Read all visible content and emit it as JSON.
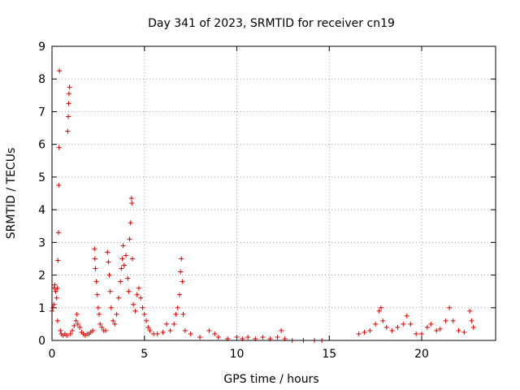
{
  "chart_data": {
    "type": "scatter",
    "title": "Day 341 of 2023, SRMTID for receiver cn19",
    "xlabel": "GPS time / hours",
    "ylabel": "SRMTID / TECUs",
    "xlim": [
      0,
      24
    ],
    "ylim": [
      0,
      9
    ],
    "xticks": [
      "0",
      "5",
      "10",
      "15",
      "20"
    ],
    "yticks": [
      "0",
      "1",
      "2",
      "3",
      "4",
      "5",
      "6",
      "7",
      "8",
      "9"
    ],
    "grid": true,
    "marker": "plus",
    "color": "#e00000",
    "series": [
      {
        "name": "SRMTID",
        "points": [
          [
            0.0,
            0.9
          ],
          [
            0.05,
            1.0
          ],
          [
            0.1,
            1.1
          ],
          [
            0.12,
            1.6
          ],
          [
            0.15,
            1.7
          ],
          [
            0.2,
            1.5
          ],
          [
            0.25,
            1.3
          ],
          [
            0.28,
            1.6
          ],
          [
            0.3,
            0.6
          ],
          [
            0.32,
            2.45
          ],
          [
            0.35,
            3.3
          ],
          [
            0.36,
            4.75
          ],
          [
            0.38,
            5.9
          ],
          [
            0.4,
            8.25
          ],
          [
            0.45,
            0.3
          ],
          [
            0.5,
            0.2
          ],
          [
            0.6,
            0.15
          ],
          [
            0.7,
            0.2
          ],
          [
            0.8,
            0.15
          ],
          [
            0.85,
            6.4
          ],
          [
            0.88,
            6.85
          ],
          [
            0.9,
            7.25
          ],
          [
            0.92,
            7.55
          ],
          [
            0.95,
            7.75
          ],
          [
            1.0,
            0.2
          ],
          [
            1.1,
            0.3
          ],
          [
            1.2,
            0.45
          ],
          [
            1.3,
            0.6
          ],
          [
            1.35,
            0.8
          ],
          [
            1.4,
            0.5
          ],
          [
            1.5,
            0.4
          ],
          [
            1.6,
            0.25
          ],
          [
            1.7,
            0.2
          ],
          [
            1.8,
            0.15
          ],
          [
            1.9,
            0.2
          ],
          [
            2.0,
            0.2
          ],
          [
            2.1,
            0.25
          ],
          [
            2.2,
            0.3
          ],
          [
            2.3,
            2.8
          ],
          [
            2.32,
            2.5
          ],
          [
            2.35,
            2.2
          ],
          [
            2.4,
            1.8
          ],
          [
            2.45,
            1.4
          ],
          [
            2.5,
            1.0
          ],
          [
            2.55,
            0.8
          ],
          [
            2.6,
            0.5
          ],
          [
            2.7,
            0.4
          ],
          [
            2.8,
            0.3
          ],
          [
            2.9,
            0.3
          ],
          [
            3.0,
            2.7
          ],
          [
            3.05,
            2.4
          ],
          [
            3.1,
            2.0
          ],
          [
            3.15,
            1.5
          ],
          [
            3.2,
            1.0
          ],
          [
            3.3,
            0.6
          ],
          [
            3.4,
            0.5
          ],
          [
            3.5,
            0.8
          ],
          [
            3.6,
            1.3
          ],
          [
            3.7,
            1.8
          ],
          [
            3.75,
            2.2
          ],
          [
            3.8,
            2.5
          ],
          [
            3.85,
            2.9
          ],
          [
            3.9,
            2.3
          ],
          [
            4.0,
            2.6
          ],
          [
            4.1,
            1.9
          ],
          [
            4.15,
            1.5
          ],
          [
            4.2,
            3.1
          ],
          [
            4.25,
            3.6
          ],
          [
            4.3,
            4.35
          ],
          [
            4.32,
            4.2
          ],
          [
            4.35,
            2.5
          ],
          [
            4.4,
            1.1
          ],
          [
            4.5,
            0.9
          ],
          [
            4.6,
            1.4
          ],
          [
            4.7,
            1.6
          ],
          [
            4.8,
            1.3
          ],
          [
            4.9,
            1.0
          ],
          [
            5.0,
            0.8
          ],
          [
            5.1,
            0.6
          ],
          [
            5.2,
            0.4
          ],
          [
            5.3,
            0.3
          ],
          [
            5.5,
            0.2
          ],
          [
            5.7,
            0.2
          ],
          [
            6.0,
            0.25
          ],
          [
            6.2,
            0.5
          ],
          [
            6.4,
            0.3
          ],
          [
            6.6,
            0.5
          ],
          [
            6.7,
            0.8
          ],
          [
            6.8,
            1.0
          ],
          [
            6.9,
            1.4
          ],
          [
            6.95,
            2.1
          ],
          [
            7.0,
            2.5
          ],
          [
            7.05,
            1.8
          ],
          [
            7.1,
            0.8
          ],
          [
            7.2,
            0.3
          ],
          [
            7.5,
            0.2
          ],
          [
            8.0,
            0.1
          ],
          [
            8.5,
            0.3
          ],
          [
            8.8,
            0.2
          ],
          [
            9.0,
            0.1
          ],
          [
            9.5,
            0.05
          ],
          [
            10.0,
            0.1
          ],
          [
            10.3,
            0.05
          ],
          [
            10.6,
            0.1
          ],
          [
            11.0,
            0.05
          ],
          [
            11.4,
            0.1
          ],
          [
            11.8,
            0.05
          ],
          [
            12.2,
            0.1
          ],
          [
            12.4,
            0.3
          ],
          [
            12.6,
            0.05
          ],
          [
            13.0,
            0.0
          ],
          [
            13.6,
            0.0
          ],
          [
            14.2,
            0.0
          ],
          [
            14.6,
            0.0
          ],
          [
            16.6,
            0.2
          ],
          [
            16.9,
            0.25
          ],
          [
            17.2,
            0.3
          ],
          [
            17.5,
            0.5
          ],
          [
            17.7,
            0.9
          ],
          [
            17.8,
            1.0
          ],
          [
            17.9,
            0.6
          ],
          [
            18.1,
            0.4
          ],
          [
            18.4,
            0.3
          ],
          [
            18.7,
            0.4
          ],
          [
            19.0,
            0.5
          ],
          [
            19.2,
            0.75
          ],
          [
            19.4,
            0.5
          ],
          [
            19.7,
            0.2
          ],
          [
            20.0,
            0.2
          ],
          [
            20.3,
            0.4
          ],
          [
            20.5,
            0.5
          ],
          [
            20.8,
            0.3
          ],
          [
            21.0,
            0.35
          ],
          [
            21.3,
            0.6
          ],
          [
            21.5,
            1.0
          ],
          [
            21.7,
            0.6
          ],
          [
            22.0,
            0.3
          ],
          [
            22.3,
            0.25
          ],
          [
            22.6,
            0.9
          ],
          [
            22.7,
            0.6
          ],
          [
            22.8,
            0.4
          ]
        ]
      }
    ]
  }
}
